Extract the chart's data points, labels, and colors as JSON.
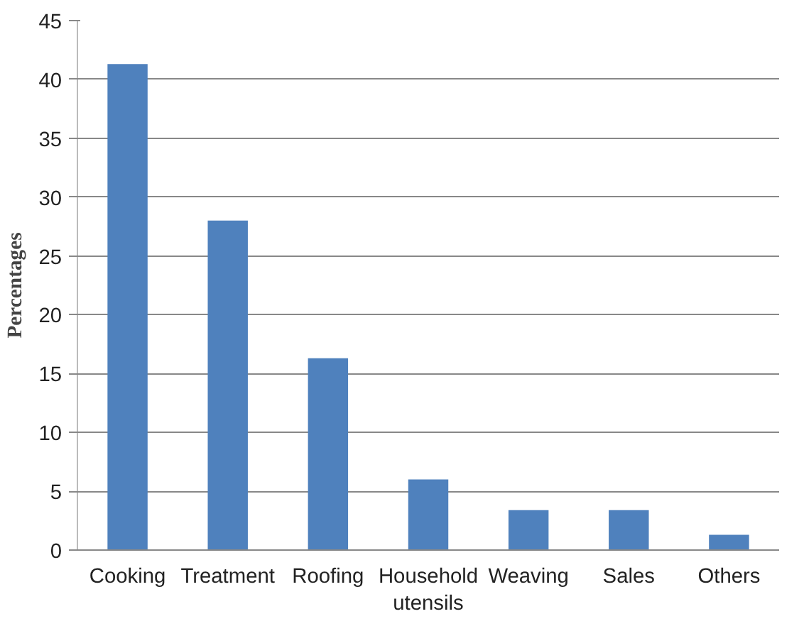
{
  "chart_data": {
    "type": "bar",
    "ylabel": "Percentages",
    "categories": [
      "Cooking",
      "Treatment",
      "Roofing",
      "Household utensils",
      "Weaving",
      "Sales",
      "Others"
    ],
    "values": [
      41.3,
      28,
      16.3,
      6,
      3.4,
      3.4,
      1.3
    ],
    "color": "#4f81bd",
    "ylim": [
      0,
      45
    ],
    "yticks": [
      0,
      5,
      10,
      15,
      20,
      25,
      30,
      35,
      40,
      45
    ],
    "grid": "y"
  }
}
